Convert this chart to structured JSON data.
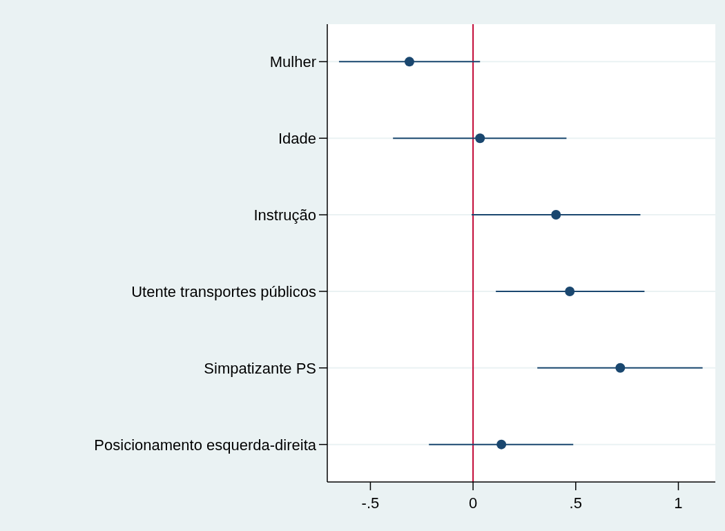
{
  "chart_data": {
    "type": "scatter",
    "orientation": "horizontal",
    "categories": [
      "Mulher",
      "Idade",
      "Instrução",
      "Utente transportes públicos",
      "Simpatizante PS",
      "Posicionamento esquerda-direita"
    ],
    "values": [
      -0.31,
      0.034,
      0.404,
      0.471,
      0.717,
      0.138
    ],
    "errors": [
      [
        -0.653,
        0.034
      ],
      [
        -0.39,
        0.455
      ],
      [
        -0.007,
        0.815
      ],
      [
        0.111,
        0.835
      ],
      [
        0.313,
        1.118
      ],
      [
        -0.215,
        0.488
      ]
    ],
    "color": "#1a476f",
    "marker": "circle",
    "xlim": [
      -0.71,
      1.18
    ],
    "xticks": [
      {
        "value": -0.5,
        "label": "-.5"
      },
      0,
      {
        "value": 0.5,
        "label": ".5"
      },
      1
    ],
    "ref_lines": [
      {
        "axis": "x",
        "value": 0,
        "color": "#c10534"
      }
    ],
    "grid": "y"
  }
}
